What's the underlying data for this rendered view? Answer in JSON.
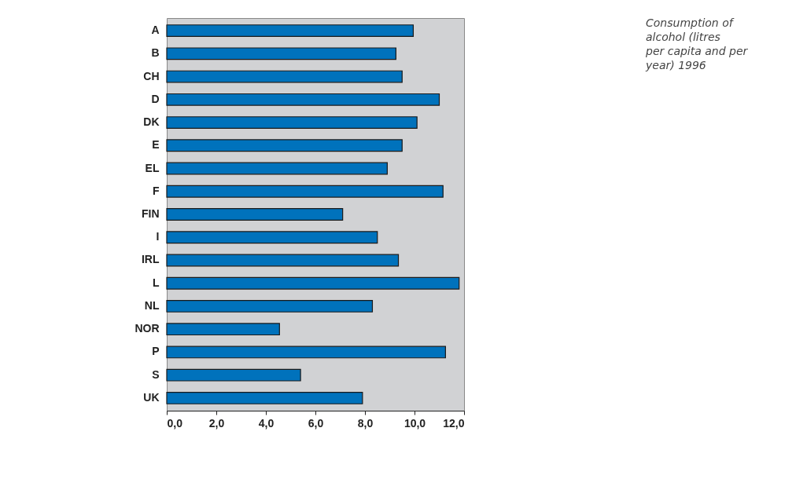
{
  "chart_data": {
    "type": "bar",
    "orientation": "horizontal",
    "title": "Consumption of alcohol (litres per capita and per year) 1996",
    "categories": [
      "A",
      "B",
      "CH",
      "D",
      "DK",
      "E",
      "EL",
      "F",
      "FIN",
      "I",
      "IRL",
      "L",
      "NL",
      "NOR",
      "P",
      "S",
      "UK"
    ],
    "values": [
      9.95,
      9.25,
      9.5,
      11.0,
      10.1,
      9.5,
      8.9,
      11.15,
      7.1,
      8.5,
      9.35,
      11.8,
      8.3,
      4.55,
      11.25,
      5.4,
      7.9
    ],
    "color": "#0072bc",
    "xlim": [
      0,
      12
    ],
    "xticks": [
      {
        "value": 0,
        "label": "0,0"
      },
      {
        "value": 2,
        "label": "2,0"
      },
      {
        "value": 4,
        "label": "4,0"
      },
      {
        "value": 6,
        "label": "6,0"
      },
      {
        "value": 8,
        "label": "8,0"
      },
      {
        "value": 10,
        "label": "10,0"
      },
      {
        "value": 12,
        "label": "12,0"
      }
    ],
    "grid": false
  }
}
